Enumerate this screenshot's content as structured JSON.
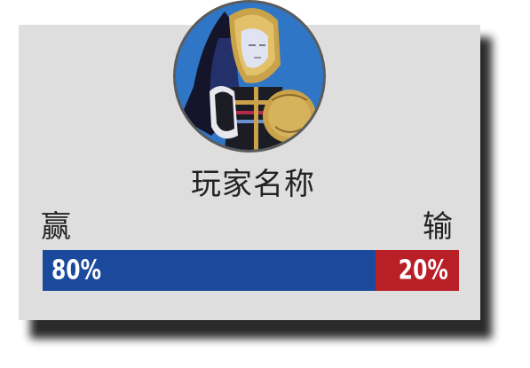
{
  "player": {
    "name": "玩家名称",
    "avatar_icon": "queen-card-avatar-icon"
  },
  "stats": {
    "win_label": "赢",
    "lose_label": "输",
    "win_percent": 80,
    "lose_percent": 20,
    "win_text": "80%",
    "lose_text": "20%"
  },
  "colors": {
    "card_background": "#dedede",
    "win_bar": "#1b4a9c",
    "lose_bar": "#b81f26",
    "avatar_background": "#2f76c6"
  }
}
